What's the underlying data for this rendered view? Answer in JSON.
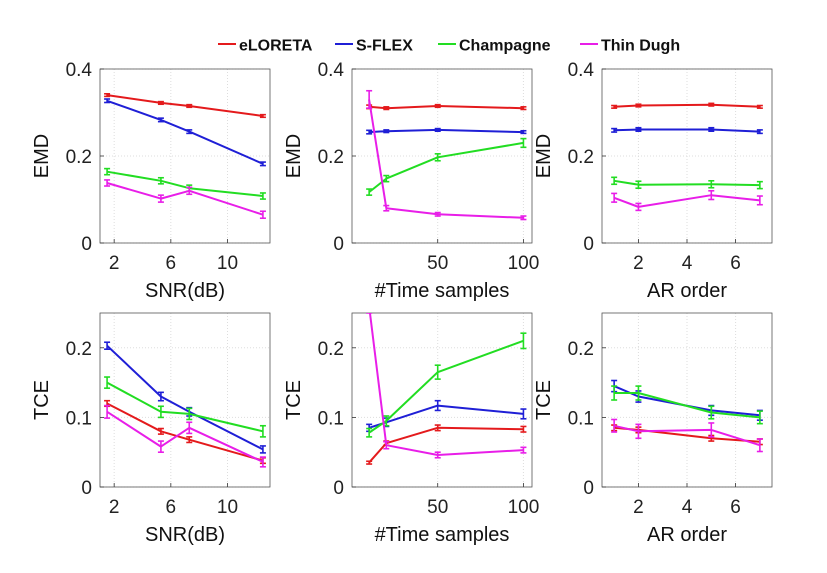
{
  "legend": {
    "placement": "top",
    "entries": [
      {
        "name": "eLORETA",
        "color": "#e41a1c"
      },
      {
        "name": "S-FLEX",
        "color": "#1f1fd6"
      },
      {
        "name": "Champagne",
        "color": "#22dd22"
      },
      {
        "name": "Thin Dugh",
        "color": "#e81ee8"
      }
    ]
  },
  "chart_data": [
    {
      "type": "line",
      "title": "",
      "xlabel": "SNR(dB)",
      "ylabel": "EMD",
      "xlim": [
        1,
        13
      ],
      "ylim": [
        0,
        0.4
      ],
      "grid": true,
      "xticks": [
        {
          "v": 2,
          "label": "2"
        },
        {
          "v": 6,
          "label": "6"
        },
        {
          "v": 10,
          "label": "10"
        }
      ],
      "yticks": [
        {
          "v": 0,
          "label": "0"
        },
        {
          "v": 0.2,
          "label": "0.2"
        },
        {
          "v": 0.4,
          "label": "0.4"
        }
      ],
      "x": [
        1.5,
        5.3,
        7.3,
        12.5
      ],
      "series": [
        {
          "name": "eLORETA",
          "color": "#e41a1c",
          "values": [
            0.34,
            0.322,
            0.315,
            0.292
          ],
          "err": [
            0.003,
            0.003,
            0.003,
            0.003
          ]
        },
        {
          "name": "S-FLEX",
          "color": "#1f1fd6",
          "values": [
            0.327,
            0.283,
            0.256,
            0.182
          ],
          "err": [
            0.004,
            0.004,
            0.004,
            0.004
          ]
        },
        {
          "name": "Champagne",
          "color": "#22dd22",
          "values": [
            0.164,
            0.143,
            0.126,
            0.108
          ],
          "err": [
            0.007,
            0.007,
            0.007,
            0.007
          ]
        },
        {
          "name": "Thin Dugh",
          "color": "#e81ee8",
          "values": [
            0.138,
            0.102,
            0.12,
            0.065
          ],
          "err": [
            0.007,
            0.008,
            0.008,
            0.008
          ]
        }
      ]
    },
    {
      "type": "line",
      "title": "",
      "xlabel": "#Time samples",
      "ylabel": "EMD",
      "xlim": [
        0,
        105
      ],
      "ylim": [
        0,
        0.4
      ],
      "grid": true,
      "xticks": [
        {
          "v": 50,
          "label": "50"
        },
        {
          "v": 100,
          "label": "100"
        }
      ],
      "yticks": [
        {
          "v": 0,
          "label": "0"
        },
        {
          "v": 0.2,
          "label": "0.2"
        },
        {
          "v": 0.4,
          "label": "0.4"
        }
      ],
      "x": [
        10,
        20,
        50,
        100
      ],
      "series": [
        {
          "name": "eLORETA",
          "color": "#e41a1c",
          "values": [
            0.313,
            0.31,
            0.315,
            0.31
          ],
          "err": [
            0.004,
            0.003,
            0.003,
            0.003
          ]
        },
        {
          "name": "S-FLEX",
          "color": "#1f1fd6",
          "values": [
            0.255,
            0.257,
            0.26,
            0.255
          ],
          "err": [
            0.004,
            0.003,
            0.003,
            0.003
          ]
        },
        {
          "name": "Champagne",
          "color": "#22dd22",
          "values": [
            0.117,
            0.148,
            0.197,
            0.23
          ],
          "err": [
            0.007,
            0.007,
            0.008,
            0.01
          ]
        },
        {
          "name": "Thin Dugh",
          "color": "#e81ee8",
          "values": [
            0.33,
            0.08,
            0.066,
            0.058
          ],
          "err": [
            0.02,
            0.006,
            0.004,
            0.004
          ]
        }
      ]
    },
    {
      "type": "line",
      "title": "",
      "xlabel": "AR order",
      "ylabel": "EMD",
      "xlim": [
        0.5,
        7.5
      ],
      "ylim": [
        0,
        0.4
      ],
      "grid": true,
      "xticks": [
        {
          "v": 2,
          "label": "2"
        },
        {
          "v": 4,
          "label": "4"
        },
        {
          "v": 6,
          "label": "6"
        }
      ],
      "yticks": [
        {
          "v": 0,
          "label": "0"
        },
        {
          "v": 0.2,
          "label": "0.2"
        },
        {
          "v": 0.4,
          "label": "0.4"
        }
      ],
      "x": [
        1,
        2,
        5,
        7
      ],
      "series": [
        {
          "name": "eLORETA",
          "color": "#e41a1c",
          "values": [
            0.313,
            0.316,
            0.318,
            0.313
          ],
          "err": [
            0.003,
            0.003,
            0.003,
            0.003
          ]
        },
        {
          "name": "S-FLEX",
          "color": "#1f1fd6",
          "values": [
            0.259,
            0.261,
            0.261,
            0.256
          ],
          "err": [
            0.004,
            0.004,
            0.004,
            0.004
          ]
        },
        {
          "name": "Champagne",
          "color": "#22dd22",
          "values": [
            0.143,
            0.134,
            0.135,
            0.133
          ],
          "err": [
            0.008,
            0.008,
            0.008,
            0.008
          ]
        },
        {
          "name": "Thin Dugh",
          "color": "#e81ee8",
          "values": [
            0.104,
            0.083,
            0.11,
            0.098
          ],
          "err": [
            0.01,
            0.008,
            0.01,
            0.01
          ]
        }
      ]
    },
    {
      "type": "line",
      "title": "",
      "xlabel": "SNR(dB)",
      "ylabel": "TCE",
      "xlim": [
        1,
        13
      ],
      "ylim": [
        0,
        0.25
      ],
      "grid": true,
      "xticks": [
        {
          "v": 2,
          "label": "2"
        },
        {
          "v": 6,
          "label": "6"
        },
        {
          "v": 10,
          "label": "10"
        }
      ],
      "yticks": [
        {
          "v": 0,
          "label": "0"
        },
        {
          "v": 0.1,
          "label": "0.1"
        },
        {
          "v": 0.2,
          "label": "0.2"
        }
      ],
      "x": [
        1.5,
        5.3,
        7.3,
        12.5
      ],
      "series": [
        {
          "name": "eLORETA",
          "color": "#e41a1c",
          "values": [
            0.12,
            0.08,
            0.068,
            0.038
          ],
          "err": [
            0.004,
            0.004,
            0.004,
            0.004
          ]
        },
        {
          "name": "S-FLEX",
          "color": "#1f1fd6",
          "values": [
            0.203,
            0.13,
            0.108,
            0.054
          ],
          "err": [
            0.005,
            0.006,
            0.006,
            0.005
          ]
        },
        {
          "name": "Champagne",
          "color": "#22dd22",
          "values": [
            0.15,
            0.108,
            0.105,
            0.08
          ],
          "err": [
            0.008,
            0.008,
            0.008,
            0.008
          ]
        },
        {
          "name": "Thin Dugh",
          "color": "#e81ee8",
          "values": [
            0.108,
            0.058,
            0.085,
            0.036
          ],
          "err": [
            0.009,
            0.008,
            0.008,
            0.007
          ]
        }
      ]
    },
    {
      "type": "line",
      "title": "",
      "xlabel": "#Time samples",
      "ylabel": "TCE",
      "xlim": [
        0,
        105
      ],
      "ylim": [
        0,
        0.25
      ],
      "grid": true,
      "xticks": [
        {
          "v": 50,
          "label": "50"
        },
        {
          "v": 100,
          "label": "100"
        }
      ],
      "yticks": [
        {
          "v": 0,
          "label": "0"
        },
        {
          "v": 0.1,
          "label": "0.1"
        },
        {
          "v": 0.2,
          "label": "0.2"
        }
      ],
      "x": [
        10,
        20,
        50,
        100
      ],
      "series": [
        {
          "name": "eLORETA",
          "color": "#e41a1c",
          "values": [
            0.035,
            0.063,
            0.085,
            0.083
          ],
          "err": [
            0.002,
            0.003,
            0.004,
            0.004
          ]
        },
        {
          "name": "S-FLEX",
          "color": "#1f1fd6",
          "values": [
            0.085,
            0.093,
            0.117,
            0.105
          ],
          "err": [
            0.005,
            0.006,
            0.007,
            0.007
          ]
        },
        {
          "name": "Champagne",
          "color": "#22dd22",
          "values": [
            0.078,
            0.095,
            0.165,
            0.21
          ],
          "err": [
            0.006,
            0.007,
            0.01,
            0.011
          ]
        },
        {
          "name": "Thin Dugh",
          "color": "#e81ee8",
          "values": [
            0.26,
            0.06,
            0.046,
            0.053
          ],
          "err": [
            0.01,
            0.005,
            0.004,
            0.004
          ]
        }
      ]
    },
    {
      "type": "line",
      "title": "",
      "xlabel": "AR order",
      "ylabel": "TCE",
      "xlim": [
        0.5,
        7.5
      ],
      "ylim": [
        0,
        0.25
      ],
      "grid": true,
      "xticks": [
        {
          "v": 2,
          "label": "2"
        },
        {
          "v": 4,
          "label": "4"
        },
        {
          "v": 6,
          "label": "6"
        }
      ],
      "yticks": [
        {
          "v": 0,
          "label": "0"
        },
        {
          "v": 0.1,
          "label": "0.1"
        },
        {
          "v": 0.2,
          "label": "0.2"
        }
      ],
      "x": [
        1,
        2,
        5,
        7
      ],
      "series": [
        {
          "name": "eLORETA",
          "color": "#e41a1c",
          "values": [
            0.085,
            0.082,
            0.07,
            0.065
          ],
          "err": [
            0.004,
            0.004,
            0.004,
            0.004
          ]
        },
        {
          "name": "S-FLEX",
          "color": "#1f1fd6",
          "values": [
            0.145,
            0.13,
            0.11,
            0.103
          ],
          "err": [
            0.008,
            0.008,
            0.007,
            0.007
          ]
        },
        {
          "name": "Champagne",
          "color": "#22dd22",
          "values": [
            0.135,
            0.135,
            0.107,
            0.1
          ],
          "err": [
            0.01,
            0.01,
            0.009,
            0.009
          ]
        },
        {
          "name": "Thin Dugh",
          "color": "#e81ee8",
          "values": [
            0.088,
            0.08,
            0.082,
            0.06
          ],
          "err": [
            0.009,
            0.01,
            0.01,
            0.009
          ]
        }
      ]
    }
  ]
}
